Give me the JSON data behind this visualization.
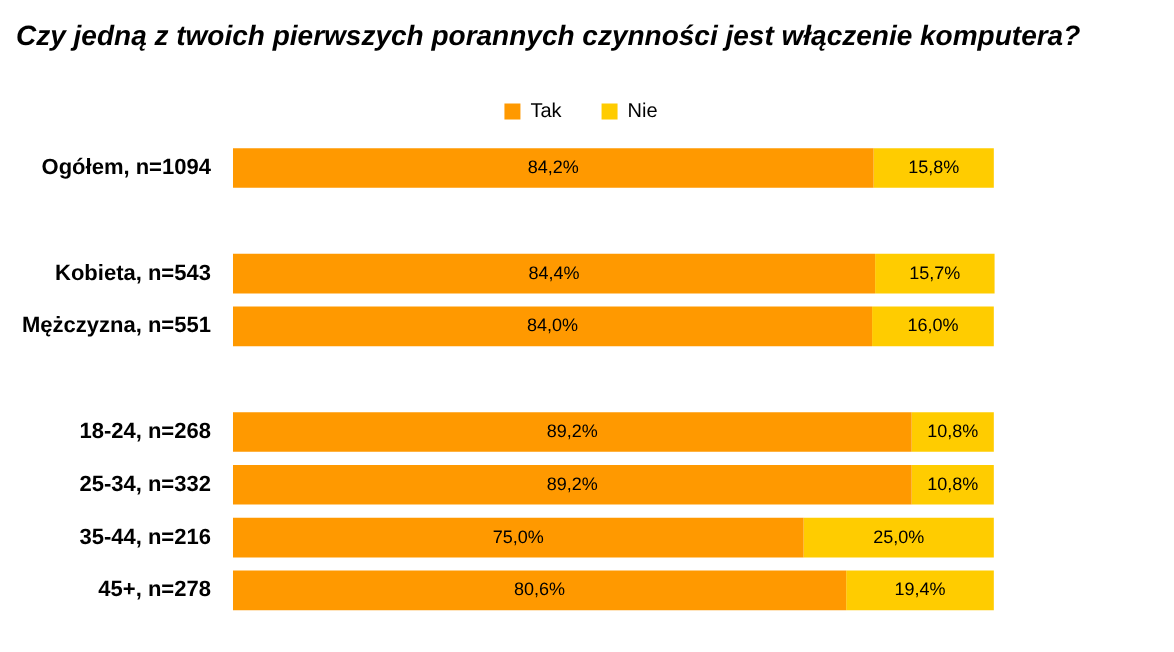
{
  "chart_data": {
    "type": "bar",
    "orientation": "horizontal",
    "stacked": true,
    "title": "Czy jedną z twoich pierwszych porannych czynności jest włączenie komputera?",
    "categories": [
      "Ogółem, n=1094",
      null,
      "Kobieta, n=543",
      "Mężczyzna, n=551",
      null,
      "18-24, n=268",
      "25-34, n=332",
      "35-44, n=216",
      "45+, n=278"
    ],
    "series": [
      {
        "name": "Tak",
        "color": "#ff9900",
        "values": [
          84.2,
          null,
          84.4,
          84.0,
          null,
          89.2,
          89.2,
          75.0,
          80.6
        ],
        "value_labels": [
          "84,2%",
          null,
          "84,4%",
          "84,0%",
          null,
          "89,2%",
          "89,2%",
          "75,0%",
          "80,6%"
        ]
      },
      {
        "name": "Nie",
        "color": "#ffcc00",
        "values": [
          15.8,
          null,
          15.7,
          16.0,
          null,
          10.8,
          10.8,
          25.0,
          19.4
        ],
        "value_labels": [
          "15,8%",
          null,
          "15,7%",
          "16,0%",
          null,
          "10,8%",
          "10,8%",
          "25,0%",
          "19,4%"
        ]
      }
    ],
    "legend": "top"
  }
}
